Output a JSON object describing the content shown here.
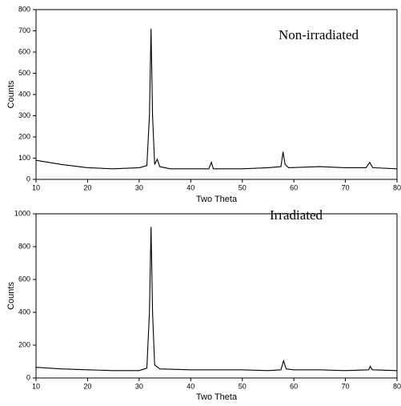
{
  "chart_data": [
    {
      "type": "line",
      "annotation": "Non-irradiated",
      "xlabel": "Two Theta",
      "ylabel": "Counts",
      "color": "#000000",
      "x": [
        10,
        15,
        20,
        25,
        30,
        31.5,
        32,
        32.3,
        32.6,
        33,
        33.5,
        34,
        36,
        40,
        43.5,
        44,
        44.4,
        50,
        55,
        57.5,
        57.9,
        58.3,
        59,
        65,
        70,
        74,
        74.7,
        75.3,
        80
      ],
      "values": [
        90,
        70,
        55,
        50,
        55,
        65,
        300,
        710,
        300,
        70,
        95,
        60,
        50,
        50,
        50,
        80,
        50,
        50,
        55,
        60,
        130,
        70,
        55,
        60,
        55,
        55,
        80,
        55,
        50
      ],
      "xlim": [
        10,
        80
      ],
      "xticks": [
        10,
        20,
        30,
        40,
        50,
        60,
        70,
        80
      ],
      "ylim": [
        0,
        800
      ],
      "yticks": [
        0,
        100,
        200,
        300,
        400,
        500,
        600,
        700,
        800
      ]
    },
    {
      "type": "line",
      "annotation": "Irradiated",
      "xlabel": "Two Theta",
      "ylabel": "Counts",
      "color": "#000000",
      "x": [
        10,
        15,
        20,
        25,
        30,
        31.5,
        32,
        32.3,
        32.6,
        33,
        34,
        40,
        44,
        50,
        55,
        57.5,
        58,
        58.5,
        60,
        65,
        70,
        74.5,
        74.8,
        75.2,
        80
      ],
      "values": [
        65,
        55,
        50,
        45,
        45,
        60,
        400,
        920,
        400,
        80,
        55,
        50,
        50,
        50,
        45,
        50,
        105,
        55,
        50,
        50,
        45,
        50,
        70,
        50,
        45
      ],
      "xlim": [
        10,
        80
      ],
      "xticks": [
        10,
        20,
        30,
        40,
        50,
        60,
        70,
        80
      ],
      "ylim": [
        0,
        1000
      ],
      "yticks": [
        0,
        200,
        400,
        600,
        800,
        1000
      ]
    }
  ]
}
